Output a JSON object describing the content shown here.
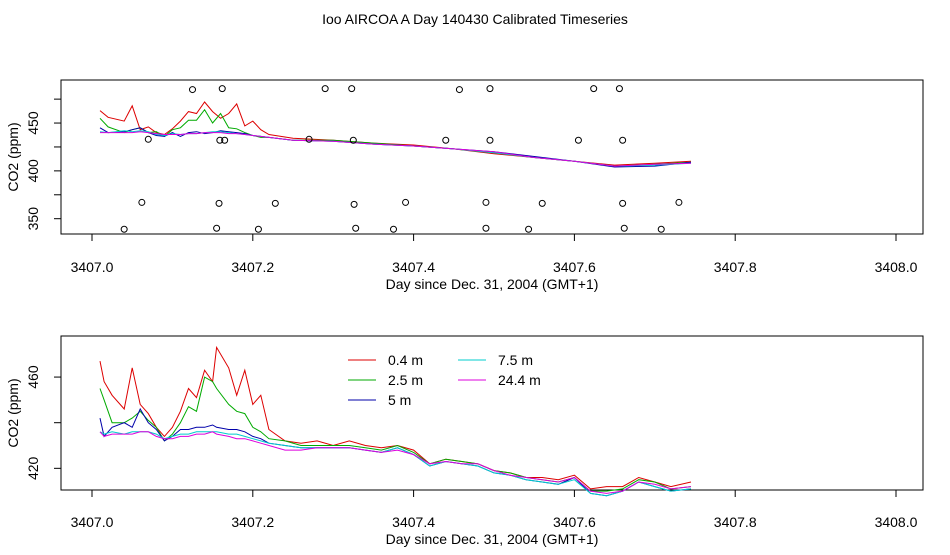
{
  "title": "Ioo AIRCOA A  Day 140430  Calibrated Timeseries",
  "colors": {
    "0.4 m": "#dd0000",
    "2.5 m": "#00aa00",
    "5 m": "#0000aa",
    "7.5 m": "#00cccc",
    "24.4 m": "#dd00dd",
    "points": "#000000"
  },
  "chart_data": [
    {
      "type": "line",
      "xlabel": "Day since Dec. 31, 2004 (GMT+1)",
      "ylabel": "CO2 (ppm)",
      "xlim": [
        3407.0,
        3408.0
      ],
      "ylim": [
        334,
        495
      ],
      "xticks": [
        "3407.0",
        "3407.2",
        "3407.4",
        "3407.6",
        "3407.8",
        "3408.0"
      ],
      "yticks": [
        "350",
        "400",
        "450"
      ],
      "ytick_values": [
        350,
        400,
        450
      ],
      "grid": false,
      "scatter_points": {
        "x": [
          3407.125,
          3407.162,
          3407.29,
          3407.323,
          3407.457,
          3407.495,
          3407.624,
          3407.656,
          3407.07,
          3407.159,
          3407.165,
          3407.27,
          3407.325,
          3407.44,
          3407.495,
          3407.605,
          3407.66,
          3407.062,
          3407.158,
          3407.228,
          3407.326,
          3407.39,
          3407.49,
          3407.56,
          3407.66,
          3407.73,
          3407.04,
          3407.155,
          3407.207,
          3407.328,
          3407.375,
          3407.49,
          3407.543,
          3407.662,
          3407.708
        ],
        "y": [
          485,
          486,
          486,
          486,
          485,
          486,
          486,
          486,
          433,
          432,
          432,
          433,
          432,
          432,
          432,
          432,
          432,
          367,
          366,
          366,
          365,
          367,
          367,
          366,
          366,
          367,
          339,
          340,
          339,
          340,
          339,
          340,
          339,
          340,
          339
        ]
      },
      "x": [
        3407.01,
        3407.02,
        3407.04,
        3407.05,
        3407.06,
        3407.07,
        3407.08,
        3407.09,
        3407.1,
        3407.11,
        3407.12,
        3407.13,
        3407.14,
        3407.15,
        3407.16,
        3407.17,
        3407.18,
        3407.19,
        3407.2,
        3407.21,
        3407.22,
        3407.25,
        3407.3,
        3407.35,
        3407.4,
        3407.45,
        3407.5,
        3407.55,
        3407.6,
        3407.65,
        3407.7,
        3407.745
      ],
      "series": [
        {
          "name": "0.4 m",
          "values": [
            463,
            456,
            452,
            468,
            443,
            446,
            440,
            438,
            444,
            452,
            462,
            460,
            472,
            462,
            455,
            460,
            470,
            447,
            452,
            443,
            438,
            434,
            432,
            429,
            427,
            423,
            418,
            414,
            410,
            406,
            408,
            410
          ]
        },
        {
          "name": "2.5 m",
          "values": [
            455,
            446,
            440,
            443,
            445,
            440,
            441,
            436,
            443,
            445,
            453,
            453,
            464,
            450,
            460,
            445,
            444,
            440,
            437,
            435,
            435,
            432,
            432,
            429,
            426,
            423,
            419,
            414,
            410,
            405,
            407,
            409
          ]
        },
        {
          "name": "5 m",
          "values": [
            445,
            440,
            441,
            443,
            445,
            440,
            437,
            436,
            440,
            436,
            440,
            441,
            439,
            440,
            442,
            441,
            440,
            439,
            437,
            436,
            435,
            432,
            431,
            428,
            426,
            423,
            420,
            415,
            410,
            404,
            405,
            409
          ]
        },
        {
          "name": "7.5 m",
          "values": [
            441,
            440,
            442,
            441,
            442,
            441,
            438,
            437,
            439,
            438,
            439,
            439,
            440,
            441,
            441,
            440,
            439,
            438,
            437,
            436,
            435,
            432,
            431,
            428,
            426,
            423,
            419,
            414,
            410,
            405,
            406,
            408
          ]
        },
        {
          "name": "24.4 m",
          "values": [
            440,
            440,
            440,
            440,
            441,
            440,
            439,
            438,
            438,
            438,
            439,
            439,
            440,
            440,
            440,
            439,
            439,
            438,
            437,
            436,
            435,
            432,
            431,
            428,
            426,
            423,
            420,
            414,
            410,
            405,
            407,
            408
          ]
        }
      ]
    },
    {
      "type": "line",
      "xlabel": "Day since Dec. 31, 2004 (GMT+1)",
      "ylabel": "CO2 (ppm)",
      "xlim": [
        3407.0,
        3408.0
      ],
      "ylim": [
        410.5,
        478
      ],
      "xticks": [
        "3407.0",
        "3407.2",
        "3407.4",
        "3407.6",
        "3407.8",
        "3408.0"
      ],
      "yticks": [
        "420",
        "460"
      ],
      "ytick_values": [
        420,
        460
      ],
      "grid": false,
      "legend": {
        "placement": "top-center",
        "columns": [
          [
            "0.4 m",
            "2.5 m",
            "5 m"
          ],
          [
            "7.5 m",
            "24.4 m"
          ]
        ]
      },
      "x": [
        3407.01,
        3407.015,
        3407.025,
        3407.04,
        3407.05,
        3407.06,
        3407.07,
        3407.08,
        3407.09,
        3407.1,
        3407.11,
        3407.12,
        3407.13,
        3407.14,
        3407.15,
        3407.155,
        3407.17,
        3407.18,
        3407.19,
        3407.2,
        3407.21,
        3407.22,
        3407.24,
        3407.26,
        3407.28,
        3407.3,
        3407.32,
        3407.34,
        3407.36,
        3407.38,
        3407.4,
        3407.42,
        3407.44,
        3407.46,
        3407.48,
        3407.5,
        3407.52,
        3407.54,
        3407.56,
        3407.58,
        3407.6,
        3407.62,
        3407.64,
        3407.66,
        3407.68,
        3407.7,
        3407.72,
        3407.745
      ],
      "series": [
        {
          "name": "0.4 m",
          "values": [
            467,
            458,
            452,
            446,
            464,
            448,
            444,
            438,
            434,
            438,
            445,
            455,
            451,
            463,
            458,
            473,
            464,
            452,
            463,
            448,
            452,
            437,
            432,
            431,
            432,
            430,
            432,
            430,
            429,
            430,
            428,
            422,
            424,
            423,
            422,
            419,
            418,
            416,
            416,
            415,
            417,
            411,
            412,
            412,
            416,
            414,
            412,
            414
          ]
        },
        {
          "name": "2.5 m",
          "values": [
            455,
            450,
            440,
            440,
            442,
            445,
            441,
            438,
            432,
            435,
            440,
            447,
            445,
            460,
            458,
            455,
            448,
            445,
            444,
            438,
            436,
            433,
            432,
            430,
            430,
            430,
            430,
            429,
            428,
            430,
            427,
            422,
            424,
            423,
            422,
            419,
            418,
            416,
            415,
            414,
            416,
            410,
            410,
            411,
            415,
            414,
            411,
            412
          ]
        },
        {
          "name": "5 m",
          "values": [
            442,
            434,
            438,
            440,
            438,
            446,
            440,
            437,
            432,
            434,
            437,
            437,
            438,
            438,
            439,
            438,
            437,
            437,
            436,
            434,
            433,
            431,
            430,
            429,
            429,
            429,
            429,
            428,
            427,
            429,
            426,
            421,
            423,
            422,
            421,
            418,
            417,
            415,
            414,
            413,
            416,
            409,
            408,
            410,
            414,
            412,
            410,
            411
          ]
        },
        {
          "name": "7.5 m",
          "values": [
            436,
            435,
            436,
            435,
            436,
            436,
            436,
            435,
            433,
            434,
            435,
            435,
            436,
            436,
            436,
            436,
            435,
            435,
            434,
            433,
            432,
            431,
            430,
            429,
            429,
            429,
            429,
            428,
            427,
            429,
            426,
            421,
            423,
            422,
            421,
            418,
            417,
            415,
            414,
            413,
            415,
            409,
            408,
            410,
            414,
            412,
            410,
            411
          ]
        },
        {
          "name": "24.4 m",
          "values": [
            436,
            434,
            435,
            435,
            435,
            436,
            436,
            434,
            433,
            433,
            434,
            434,
            435,
            435,
            436,
            435,
            434,
            433,
            433,
            432,
            431,
            430,
            428,
            428,
            429,
            429,
            429,
            428,
            427,
            428,
            426,
            422,
            423,
            422,
            422,
            419,
            417,
            416,
            415,
            414,
            416,
            410,
            409,
            410,
            414,
            413,
            411,
            412
          ]
        }
      ]
    }
  ]
}
